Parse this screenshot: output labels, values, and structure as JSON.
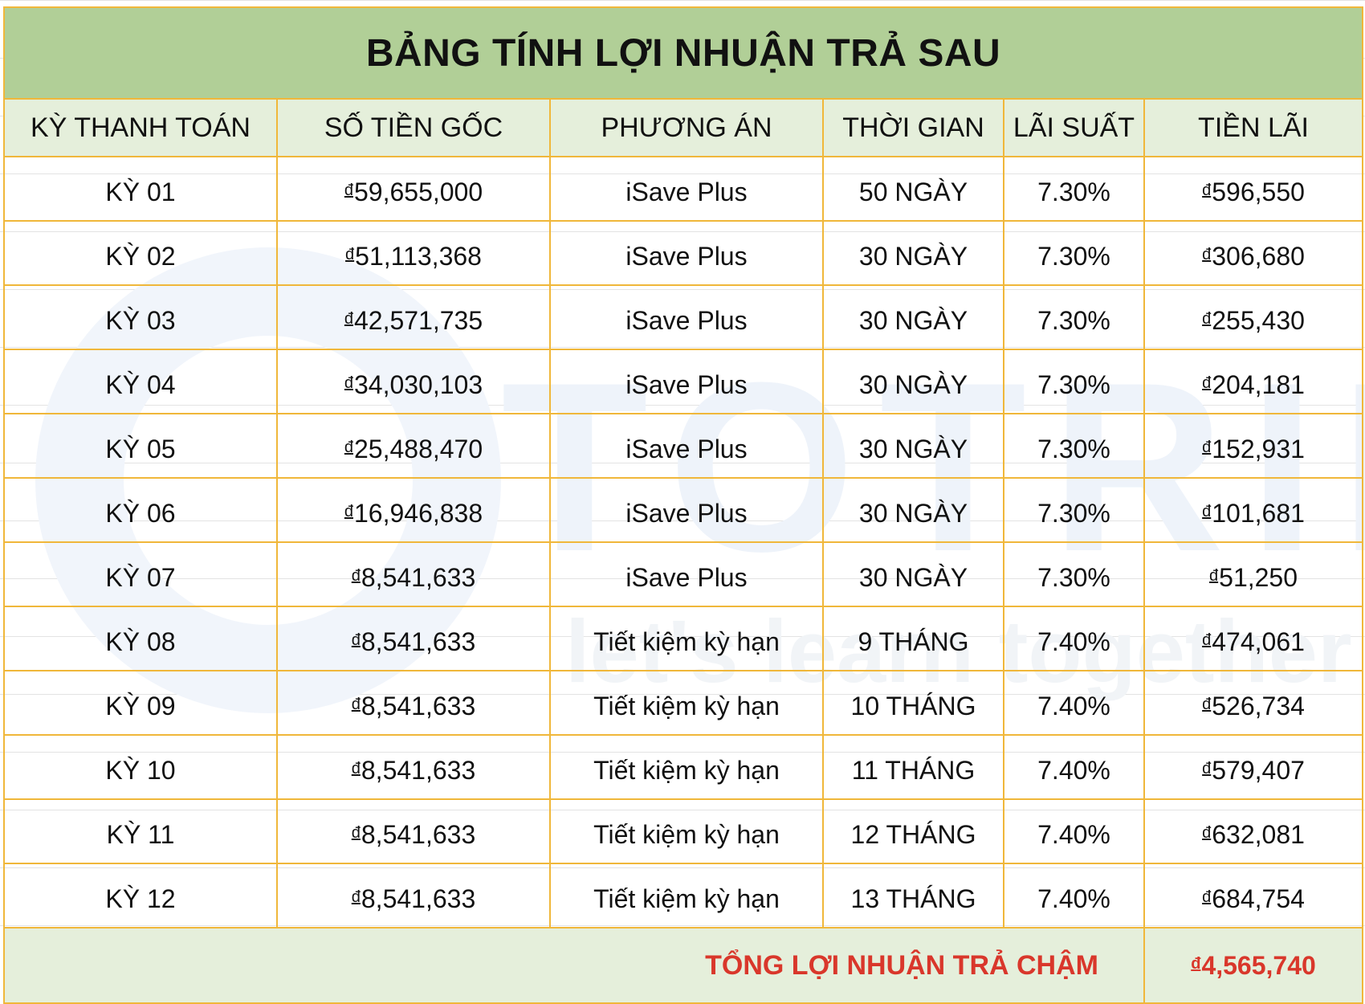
{
  "title": "BẢNG TÍNH LỢI NHUẬN TRẢ SAU",
  "watermark": {
    "brand": "TOTRIEU",
    "slogan": "let's learn together"
  },
  "currency_symbol": "đ",
  "columns": [
    "KỲ THANH TOÁN",
    "SỐ TIỀN GỐC",
    "PHƯƠNG ÁN",
    "THỜI GIAN",
    "LÃI SUẤT",
    "TIỀN LÃI"
  ],
  "rows": [
    {
      "period": "KỲ 01",
      "principal": "59,655,000",
      "plan": "iSave Plus",
      "duration": "50 NGÀY",
      "rate": "7.30%",
      "interest": "596,550"
    },
    {
      "period": "KỲ 02",
      "principal": "51,113,368",
      "plan": "iSave Plus",
      "duration": "30 NGÀY",
      "rate": "7.30%",
      "interest": "306,680"
    },
    {
      "period": "KỲ 03",
      "principal": "42,571,735",
      "plan": "iSave Plus",
      "duration": "30 NGÀY",
      "rate": "7.30%",
      "interest": "255,430"
    },
    {
      "period": "KỲ 04",
      "principal": "34,030,103",
      "plan": "iSave Plus",
      "duration": "30 NGÀY",
      "rate": "7.30%",
      "interest": "204,181"
    },
    {
      "period": "KỲ 05",
      "principal": "25,488,470",
      "plan": "iSave Plus",
      "duration": "30 NGÀY",
      "rate": "7.30%",
      "interest": "152,931"
    },
    {
      "period": "KỲ 06",
      "principal": "16,946,838",
      "plan": "iSave Plus",
      "duration": "30 NGÀY",
      "rate": "7.30%",
      "interest": "101,681"
    },
    {
      "period": "KỲ 07",
      "principal": "8,541,633",
      "plan": "iSave Plus",
      "duration": "30 NGÀY",
      "rate": "7.30%",
      "interest": "51,250"
    },
    {
      "period": "KỲ 08",
      "principal": "8,541,633",
      "plan": "Tiết kiệm kỳ hạn",
      "duration": "9 THÁNG",
      "rate": "7.40%",
      "interest": "474,061"
    },
    {
      "period": "KỲ 09",
      "principal": "8,541,633",
      "plan": "Tiết kiệm kỳ hạn",
      "duration": "10 THÁNG",
      "rate": "7.40%",
      "interest": "526,734"
    },
    {
      "period": "KỲ 10",
      "principal": "8,541,633",
      "plan": "Tiết kiệm kỳ hạn",
      "duration": "11 THÁNG",
      "rate": "7.40%",
      "interest": "579,407"
    },
    {
      "period": "KỲ 11",
      "principal": "8,541,633",
      "plan": "Tiết kiệm kỳ hạn",
      "duration": "12 THÁNG",
      "rate": "7.40%",
      "interest": "632,081"
    },
    {
      "period": "KỲ 12",
      "principal": "8,541,633",
      "plan": "Tiết kiệm kỳ hạn",
      "duration": "13 THÁNG",
      "rate": "7.40%",
      "interest": "684,754"
    }
  ],
  "total": {
    "label": "TỔNG LỢI NHUẬN TRẢ CHẬM",
    "value": "4,565,740"
  },
  "colors": {
    "title_bg": "#b1cf97",
    "header_bg": "#e5efdb",
    "border": "#f0b73a",
    "total_text": "#d9372b"
  }
}
